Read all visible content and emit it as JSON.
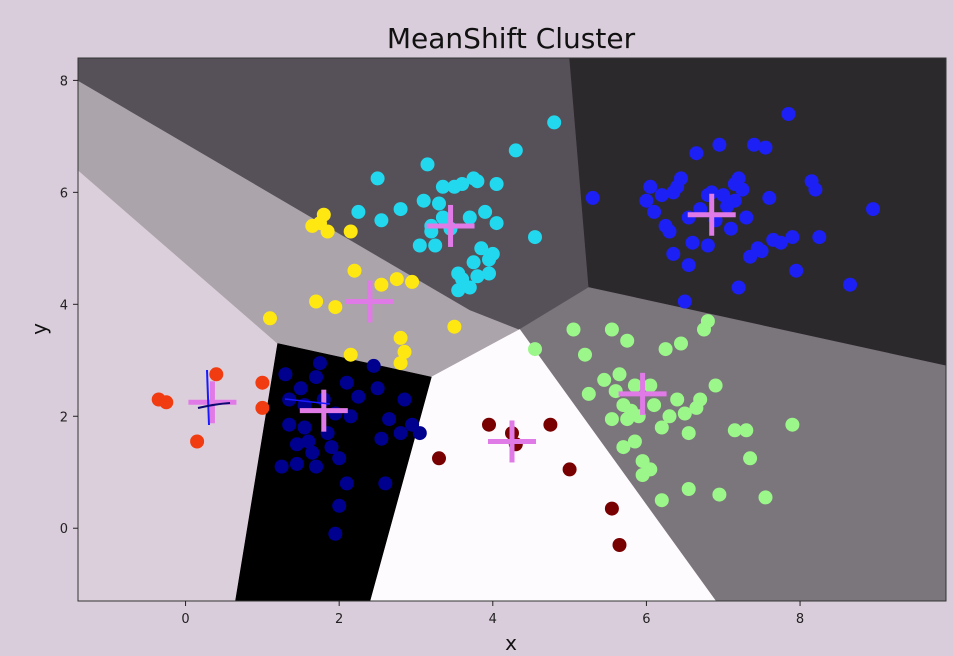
{
  "chart_data": {
    "type": "scatter",
    "title": "MeanShift Cluster",
    "xlabel": "x",
    "ylabel": "y",
    "xlim": [
      -1.4,
      9.9
    ],
    "ylim": [
      -1.3,
      8.4
    ],
    "xticks": [
      0,
      2,
      4,
      6,
      8
    ],
    "yticks": [
      0,
      2,
      4,
      6,
      8
    ],
    "background": "#d9ccdb",
    "regions": [
      {
        "color": "#dccfdc",
        "polygon": [
          [
            -1.4,
            6.4
          ],
          [
            -1.4,
            -1.3
          ],
          [
            0.65,
            -1.3
          ],
          [
            1.2,
            3.3
          ]
        ]
      },
      {
        "color": "#aba4ab",
        "polygon": [
          [
            -1.4,
            8.0
          ],
          [
            -1.4,
            6.4
          ],
          [
            1.2,
            3.3
          ],
          [
            3.2,
            2.7
          ],
          [
            4.35,
            3.55
          ],
          [
            3.7,
            3.9
          ]
        ]
      },
      {
        "color": "#565058",
        "polygon": [
          [
            -1.4,
            8.4
          ],
          [
            5.0,
            8.4
          ],
          [
            5.25,
            4.3
          ],
          [
            4.35,
            3.55
          ],
          [
            3.7,
            3.9
          ],
          [
            -1.4,
            8.0
          ]
        ]
      },
      {
        "color": "#2c292d",
        "polygon": [
          [
            5.0,
            8.4
          ],
          [
            9.9,
            8.4
          ],
          [
            9.9,
            2.9
          ],
          [
            5.25,
            4.3
          ]
        ]
      },
      {
        "color": "#7b757c",
        "polygon": [
          [
            5.25,
            4.3
          ],
          [
            9.9,
            2.9
          ],
          [
            9.9,
            -1.3
          ],
          [
            6.9,
            -1.3
          ],
          [
            4.35,
            3.55
          ]
        ]
      },
      {
        "color": "#fefbfe",
        "polygon": [
          [
            3.2,
            2.7
          ],
          [
            4.35,
            3.55
          ],
          [
            6.9,
            -1.3
          ],
          [
            2.4,
            -1.3
          ]
        ]
      },
      {
        "color": "#000000",
        "polygon": [
          [
            1.2,
            3.3
          ],
          [
            3.2,
            2.7
          ],
          [
            2.4,
            -1.3
          ],
          [
            0.65,
            -1.3
          ]
        ]
      }
    ],
    "series": [
      {
        "color": "#f03c10",
        "points": [
          [
            -0.35,
            2.3
          ],
          [
            -0.25,
            2.25
          ],
          [
            0.15,
            1.55
          ],
          [
            0.4,
            2.75
          ],
          [
            1.0,
            2.6
          ],
          [
            1.0,
            2.15
          ]
        ]
      },
      {
        "color": "#00008f",
        "points": [
          [
            1.5,
            2.5
          ],
          [
            1.55,
            1.8
          ],
          [
            1.6,
            1.55
          ],
          [
            1.65,
            1.35
          ],
          [
            1.7,
            1.1
          ],
          [
            1.75,
            2.95
          ],
          [
            1.8,
            2.3
          ],
          [
            1.85,
            1.7
          ],
          [
            1.9,
            1.45
          ],
          [
            1.95,
            2.05
          ],
          [
            2.0,
            1.25
          ],
          [
            2.1,
            2.6
          ],
          [
            2.15,
            2.0
          ],
          [
            2.25,
            2.35
          ],
          [
            1.45,
            1.5
          ],
          [
            1.35,
            1.85
          ],
          [
            1.35,
            2.3
          ],
          [
            1.45,
            1.15
          ],
          [
            2.1,
            0.8
          ],
          [
            2.0,
            0.4
          ],
          [
            1.95,
            -0.1
          ],
          [
            2.5,
            2.5
          ],
          [
            2.45,
            2.9
          ],
          [
            2.55,
            1.6
          ],
          [
            2.65,
            1.95
          ],
          [
            2.8,
            1.7
          ],
          [
            2.85,
            2.3
          ],
          [
            2.95,
            1.85
          ],
          [
            3.05,
            1.7
          ],
          [
            2.6,
            0.8
          ],
          [
            1.3,
            2.75
          ],
          [
            1.55,
            2.2
          ],
          [
            1.7,
            2.7
          ],
          [
            1.25,
            1.1
          ]
        ]
      },
      {
        "color": "#ffe812",
        "points": [
          [
            1.1,
            3.75
          ],
          [
            1.65,
            5.4
          ],
          [
            1.75,
            5.45
          ],
          [
            1.8,
            5.6
          ],
          [
            1.85,
            5.3
          ],
          [
            2.15,
            5.3
          ],
          [
            2.2,
            4.6
          ],
          [
            2.15,
            3.1
          ],
          [
            1.7,
            4.05
          ],
          [
            1.95,
            3.95
          ],
          [
            2.55,
            4.35
          ],
          [
            2.75,
            4.45
          ],
          [
            2.8,
            3.4
          ],
          [
            2.85,
            3.15
          ],
          [
            2.8,
            2.95
          ],
          [
            2.95,
            4.4
          ],
          [
            3.5,
            3.6
          ]
        ]
      },
      {
        "color": "#22d8ee",
        "points": [
          [
            2.25,
            5.65
          ],
          [
            2.5,
            6.25
          ],
          [
            2.55,
            5.5
          ],
          [
            2.8,
            5.7
          ],
          [
            3.05,
            5.05
          ],
          [
            3.1,
            5.85
          ],
          [
            3.15,
            6.5
          ],
          [
            3.2,
            5.3
          ],
          [
            3.25,
            5.05
          ],
          [
            3.3,
            5.8
          ],
          [
            3.35,
            5.55
          ],
          [
            3.35,
            6.1
          ],
          [
            3.5,
            6.1
          ],
          [
            3.6,
            6.15
          ],
          [
            3.7,
            5.55
          ],
          [
            3.75,
            6.25
          ],
          [
            3.8,
            6.2
          ],
          [
            3.85,
            5.0
          ],
          [
            3.9,
            5.65
          ],
          [
            3.95,
            4.8
          ],
          [
            4.0,
            4.9
          ],
          [
            4.05,
            6.15
          ],
          [
            3.55,
            4.25
          ],
          [
            3.55,
            4.55
          ],
          [
            3.6,
            4.45
          ],
          [
            3.8,
            4.5
          ],
          [
            3.75,
            4.75
          ],
          [
            3.95,
            4.55
          ],
          [
            4.05,
            5.45
          ],
          [
            3.7,
            4.3
          ],
          [
            4.3,
            6.75
          ],
          [
            4.55,
            5.2
          ],
          [
            4.8,
            7.25
          ],
          [
            3.45,
            5.35
          ],
          [
            3.2,
            5.4
          ]
        ]
      },
      {
        "color": "#1c20f4",
        "points": [
          [
            5.3,
            5.9
          ],
          [
            6.0,
            5.85
          ],
          [
            6.05,
            6.1
          ],
          [
            6.1,
            5.65
          ],
          [
            6.2,
            5.95
          ],
          [
            6.25,
            5.4
          ],
          [
            6.3,
            5.3
          ],
          [
            6.35,
            6.0
          ],
          [
            6.4,
            6.1
          ],
          [
            6.45,
            6.25
          ],
          [
            6.55,
            5.55
          ],
          [
            6.6,
            5.1
          ],
          [
            6.65,
            6.7
          ],
          [
            6.7,
            5.7
          ],
          [
            6.8,
            5.95
          ],
          [
            6.85,
            6.0
          ],
          [
            6.9,
            5.5
          ],
          [
            6.95,
            6.85
          ],
          [
            7.0,
            5.95
          ],
          [
            7.05,
            5.75
          ],
          [
            7.1,
            5.35
          ],
          [
            7.15,
            6.15
          ],
          [
            7.2,
            6.25
          ],
          [
            7.25,
            6.05
          ],
          [
            7.3,
            5.55
          ],
          [
            7.35,
            4.85
          ],
          [
            7.4,
            6.85
          ],
          [
            7.45,
            5.0
          ],
          [
            7.5,
            4.95
          ],
          [
            7.55,
            6.8
          ],
          [
            7.6,
            5.9
          ],
          [
            7.65,
            5.15
          ],
          [
            7.75,
            5.1
          ],
          [
            7.85,
            7.4
          ],
          [
            7.9,
            5.2
          ],
          [
            7.95,
            4.6
          ],
          [
            8.15,
            6.2
          ],
          [
            8.2,
            6.05
          ],
          [
            8.25,
            5.2
          ],
          [
            8.65,
            4.35
          ],
          [
            8.95,
            5.7
          ],
          [
            6.5,
            4.05
          ],
          [
            6.55,
            4.7
          ],
          [
            6.8,
            5.05
          ],
          [
            7.2,
            4.3
          ],
          [
            6.35,
            4.9
          ],
          [
            7.15,
            5.85
          ]
        ]
      },
      {
        "color": "#9cf78a",
        "points": [
          [
            4.55,
            3.2
          ],
          [
            5.05,
            3.55
          ],
          [
            5.2,
            3.1
          ],
          [
            5.25,
            2.4
          ],
          [
            5.45,
            2.65
          ],
          [
            5.55,
            3.55
          ],
          [
            5.55,
            1.95
          ],
          [
            5.6,
            2.45
          ],
          [
            5.65,
            2.75
          ],
          [
            5.7,
            2.2
          ],
          [
            5.75,
            1.95
          ],
          [
            5.75,
            3.35
          ],
          [
            5.8,
            2.1
          ],
          [
            5.85,
            2.55
          ],
          [
            5.85,
            1.55
          ],
          [
            5.9,
            2.0
          ],
          [
            5.95,
            1.2
          ],
          [
            6.05,
            2.55
          ],
          [
            6.1,
            2.2
          ],
          [
            6.2,
            1.8
          ],
          [
            6.25,
            3.2
          ],
          [
            6.3,
            2.0
          ],
          [
            6.4,
            2.3
          ],
          [
            6.45,
            3.3
          ],
          [
            6.5,
            2.05
          ],
          [
            6.55,
            0.7
          ],
          [
            6.65,
            2.15
          ],
          [
            6.7,
            2.3
          ],
          [
            6.75,
            3.55
          ],
          [
            6.8,
            3.7
          ],
          [
            6.9,
            2.55
          ],
          [
            6.95,
            0.6
          ],
          [
            7.15,
            1.75
          ],
          [
            7.3,
            1.75
          ],
          [
            7.35,
            1.25
          ],
          [
            7.55,
            0.55
          ],
          [
            7.9,
            1.85
          ],
          [
            6.55,
            1.7
          ],
          [
            6.2,
            0.5
          ],
          [
            5.7,
            1.45
          ],
          [
            5.95,
            0.95
          ],
          [
            6.05,
            1.05
          ]
        ]
      },
      {
        "color": "#780000",
        "points": [
          [
            3.3,
            1.25
          ],
          [
            3.95,
            1.85
          ],
          [
            4.25,
            1.7
          ],
          [
            4.3,
            1.5
          ],
          [
            4.75,
            1.85
          ],
          [
            5.0,
            1.05
          ],
          [
            5.55,
            0.35
          ],
          [
            5.65,
            -0.3
          ]
        ]
      }
    ],
    "centers_color": "#e07ae6",
    "centers": [
      [
        0.35,
        2.25
      ],
      [
        1.8,
        2.1
      ],
      [
        2.4,
        4.05
      ],
      [
        3.45,
        5.4
      ],
      [
        6.85,
        5.6
      ],
      [
        5.95,
        2.4
      ],
      [
        4.25,
        1.55
      ]
    ]
  }
}
